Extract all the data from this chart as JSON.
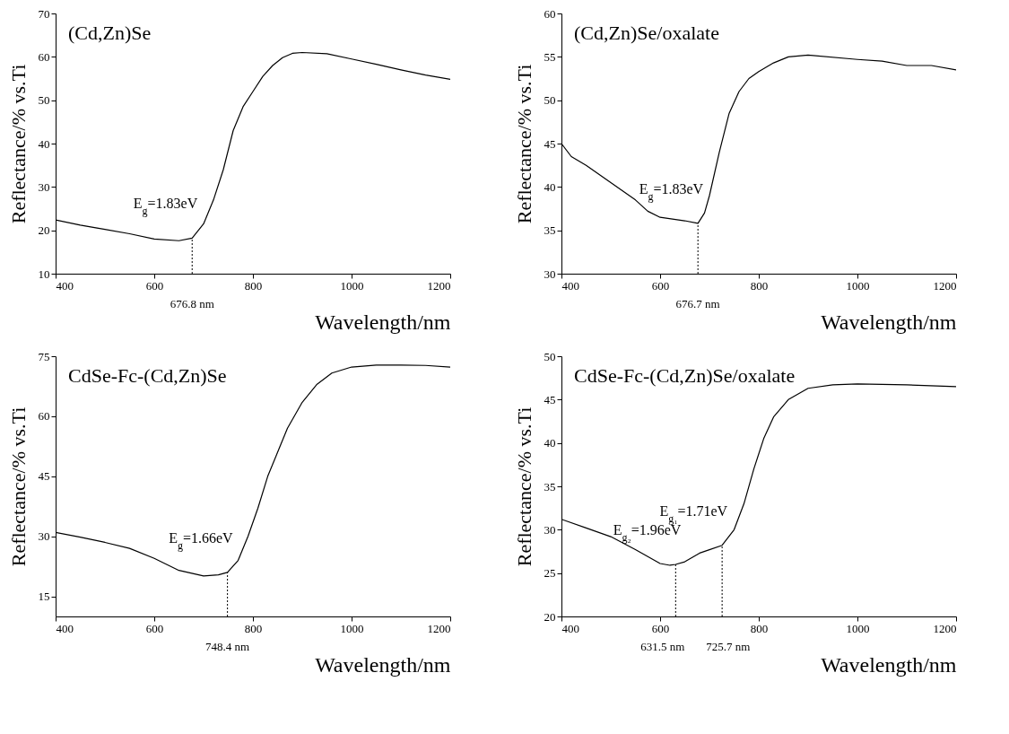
{
  "chart_data": [
    {
      "type": "line",
      "title": "(Cd,Zn)Se",
      "xlabel": "Wavelength/nm",
      "ylabel": "Reflectance/% vs.Ti",
      "xlim": [
        400,
        1200
      ],
      "xticks": [
        400,
        600,
        800,
        1000,
        1200
      ],
      "ylim": [
        10,
        70
      ],
      "yticks": [
        10,
        20,
        30,
        40,
        50,
        60,
        70
      ],
      "grid": false,
      "legend": false,
      "series": [
        {
          "color": "#000000",
          "x": [
            400,
            450,
            500,
            550,
            600,
            650,
            676.8,
            700,
            720,
            740,
            760,
            780,
            800,
            820,
            840,
            860,
            880,
            900,
            950,
            1000,
            1050,
            1100,
            1150,
            1200
          ],
          "values": [
            22.4,
            21.2,
            20.2,
            19.2,
            18.0,
            17.6,
            18.2,
            21.5,
            27,
            34,
            43,
            48.5,
            52,
            55.5,
            58,
            59.8,
            60.8,
            61,
            60.7,
            59.5,
            58.3,
            57,
            55.8,
            54.8
          ]
        }
      ],
      "annotations": [
        {
          "text": "E$_{g}$=1.83eV",
          "x": 676.8,
          "y": 18.2
        }
      ],
      "ref_lines": [
        {
          "axis": "x",
          "value": 676.8,
          "label": "676.8 nm",
          "line_style": "dotted"
        }
      ]
    },
    {
      "type": "line",
      "title": "(Cd,Zn)Se/oxalate",
      "xlabel": "Wavelength/nm",
      "ylabel": "Reflectance/% vs.Ti",
      "xlim": [
        400,
        1200
      ],
      "xticks": [
        400,
        600,
        800,
        1000,
        1200
      ],
      "ylim": [
        30,
        60
      ],
      "yticks": [
        30,
        35,
        40,
        45,
        50,
        55,
        60
      ],
      "grid": false,
      "legend": false,
      "series": [
        {
          "color": "#000000",
          "x": [
            400,
            420,
            450,
            500,
            550,
            575,
            600,
            650,
            676.7,
            690,
            700,
            720,
            740,
            760,
            780,
            800,
            830,
            860,
            900,
            1000,
            1050,
            1100,
            1150,
            1200
          ],
          "values": [
            45,
            43.5,
            42.5,
            40.5,
            38.5,
            37.2,
            36.5,
            36.1,
            35.8,
            37,
            39,
            44,
            48.5,
            51,
            52.5,
            53.3,
            54.3,
            55,
            55.2,
            54.7,
            54.5,
            54,
            54,
            53.5
          ]
        }
      ],
      "annotations": [
        {
          "text": "E$_{g}$=1.83eV",
          "x": 676.7,
          "y": 35.8
        }
      ],
      "ref_lines": [
        {
          "axis": "x",
          "value": 676.7,
          "label": "676.7 nm",
          "line_style": "dotted"
        }
      ]
    },
    {
      "type": "line",
      "title": "CdSe-Fc-(Cd,Zn)Se",
      "xlabel": "Wavelength/nm",
      "ylabel": "Reflectance/% vs.Ti",
      "xlim": [
        400,
        1200
      ],
      "xticks": [
        400,
        600,
        800,
        1000,
        1200
      ],
      "ylim": [
        10,
        75
      ],
      "yticks": [
        15,
        30,
        45,
        60,
        75
      ],
      "grid": false,
      "legend": false,
      "series": [
        {
          "color": "#000000",
          "x": [
            400,
            450,
            500,
            550,
            600,
            650,
            700,
            730,
            748.4,
            770,
            790,
            810,
            830,
            850,
            870,
            900,
            930,
            960,
            1000,
            1050,
            1100,
            1150,
            1200
          ],
          "values": [
            31,
            29.8,
            28.5,
            27,
            24.5,
            21.5,
            20.1,
            20.4,
            21,
            24,
            30,
            37,
            45,
            51,
            57,
            63.5,
            68,
            70.8,
            72.3,
            72.8,
            72.8,
            72.7,
            72.3
          ]
        }
      ],
      "annotations": [
        {
          "text": "E$_{g}$=1.66eV",
          "x": 748.4,
          "y": 21
        }
      ],
      "ref_lines": [
        {
          "axis": "x",
          "value": 748.4,
          "label": "748.4 nm",
          "line_style": "dotted"
        }
      ]
    },
    {
      "type": "line",
      "title": "CdSe-Fc-(Cd,Zn)Se/oxalate",
      "xlabel": "Wavelength/nm",
      "ylabel": "Reflectance/% vs.Ti",
      "xlim": [
        400,
        1200
      ],
      "xticks": [
        400,
        600,
        800,
        1000,
        1200
      ],
      "ylim": [
        20,
        50
      ],
      "yticks": [
        20,
        25,
        30,
        35,
        40,
        45,
        50
      ],
      "grid": false,
      "legend": false,
      "series": [
        {
          "color": "#000000",
          "x": [
            400,
            450,
            500,
            550,
            600,
            620,
            631.5,
            650,
            680,
            700,
            725.7,
            750,
            770,
            790,
            810,
            830,
            860,
            900,
            950,
            1000,
            1100,
            1200
          ],
          "values": [
            31.2,
            30.2,
            29.2,
            27.7,
            26.1,
            25.9,
            26,
            26.3,
            27.3,
            27.7,
            28.2,
            30,
            33,
            37,
            40.5,
            43,
            45,
            46.3,
            46.7,
            46.8,
            46.7,
            46.5
          ]
        }
      ],
      "annotations": [
        {
          "text": "E$_{g₂}$=1.96eV",
          "x": 631.5,
          "y": 26
        },
        {
          "text": "E$_{g₁}$=1.71eV",
          "x": 725.7,
          "y": 28.2
        }
      ],
      "ref_lines": [
        {
          "axis": "x",
          "value": 631.5,
          "label": "631.5 nm",
          "line_style": "dotted"
        },
        {
          "axis": "x",
          "value": 725.7,
          "label": "725.7 nm",
          "line_style": "dotted"
        }
      ]
    }
  ]
}
